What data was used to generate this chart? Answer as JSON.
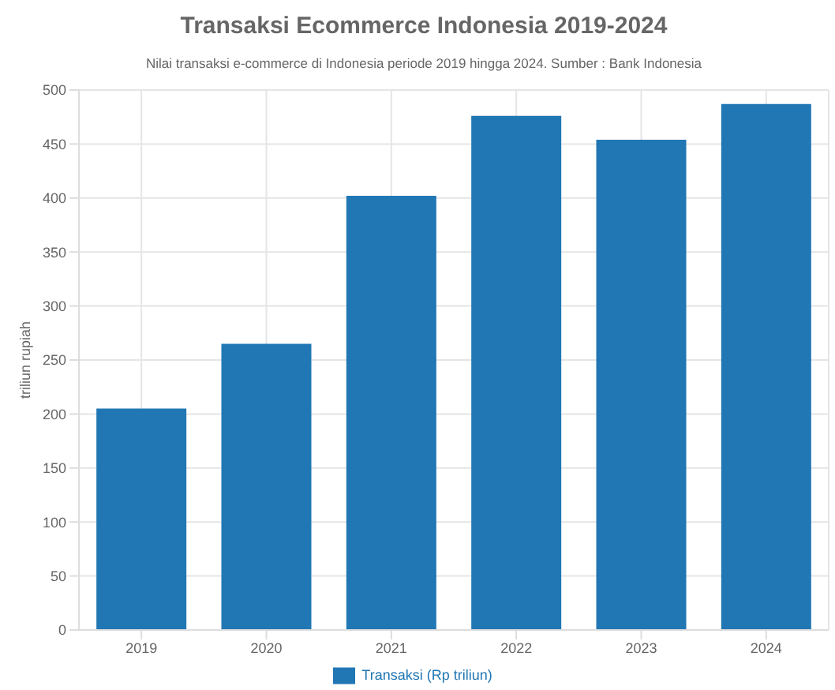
{
  "chart_data": {
    "type": "bar",
    "title": "Transaksi Ecommerce Indonesia 2019-2024",
    "subtitle": "Nilai transaksi e-commerce di Indonesia periode 2019 hingga 2024. Sumber : Bank Indonesia",
    "ylabel": "triliun rupiah",
    "categories": [
      "2019",
      "2020",
      "2021",
      "2022",
      "2023",
      "2024"
    ],
    "series": [
      {
        "name": "Transaksi (Rp triliun)",
        "color": "#2077b4",
        "values": [
          205,
          265,
          402,
          476,
          454,
          487
        ]
      }
    ],
    "ylim": [
      0,
      500
    ],
    "yticks": [
      0,
      50,
      100,
      150,
      200,
      250,
      300,
      350,
      400,
      450,
      500
    ],
    "grid": true,
    "legend": "bottom"
  }
}
